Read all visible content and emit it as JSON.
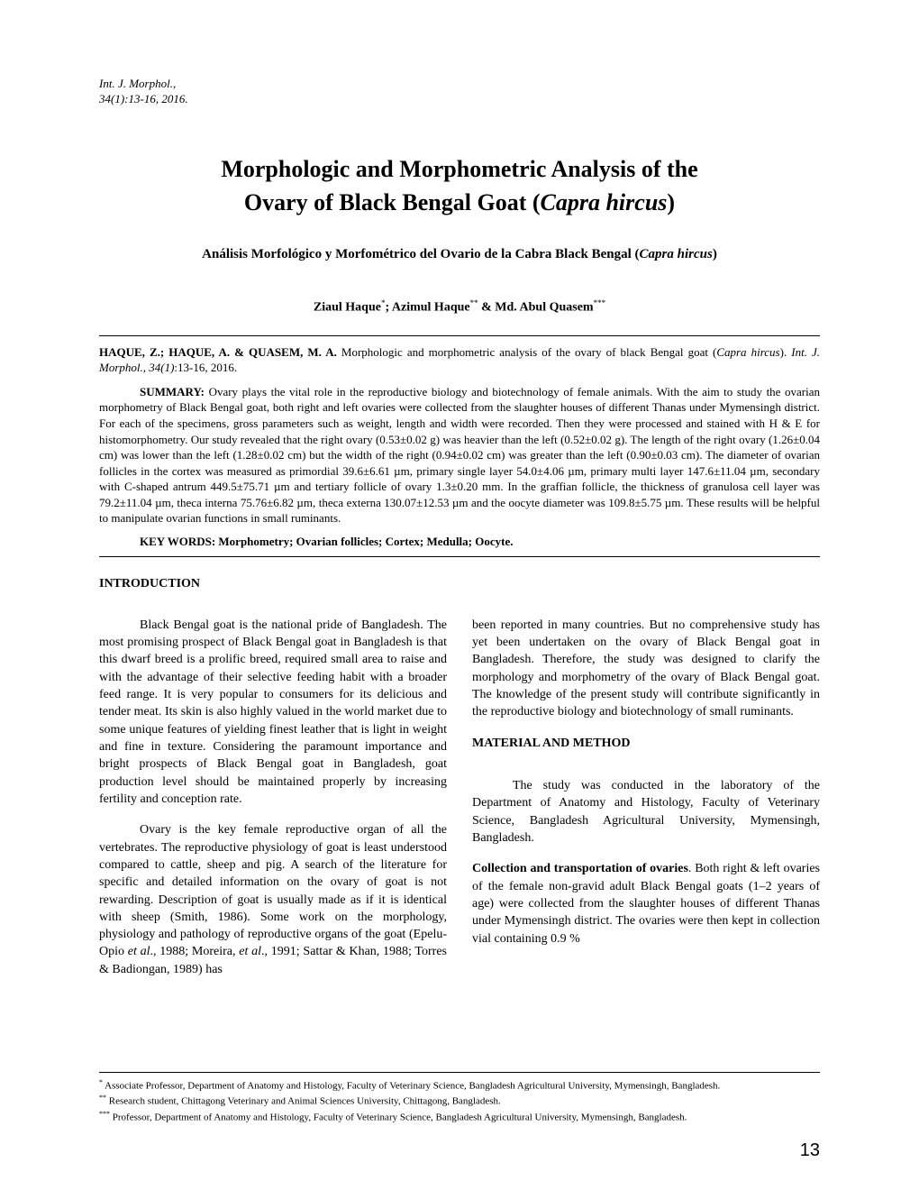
{
  "journal_ref_line1": "Int. J. Morphol.,",
  "journal_ref_line2": "34(1):13-16, 2016.",
  "title_line1": "Morphologic and Morphometric Analysis of the",
  "title_line2_pre": "Ovary of Black Bengal Goat (",
  "title_line2_species": "Capra hircus",
  "title_line2_post": ")",
  "subtitle_pre": "Análisis Morfológico y Morfométrico del Ovario de la Cabra Black Bengal (",
  "subtitle_species": "Capra hircus",
  "subtitle_post": ")",
  "author1": "Ziaul Haque",
  "author1_sup": "*",
  "author_sep1": "; ",
  "author2": "Azimul Haque",
  "author2_sup": "**",
  "author_sep2": " & ",
  "author3": "Md. Abul Quasem",
  "author3_sup": "***",
  "citation_authors": "HAQUE, Z.; HAQUE, A. & QUASEM, M. A.",
  "citation_title_pre": " Morphologic and morphometric analysis of the ovary of black Bengal goat (",
  "citation_species": "Capra hircus",
  "citation_title_post": "). ",
  "citation_journal": "Int. J. Morphol., 34(1)",
  "citation_pages": ":13-16, 2016.",
  "summary_label": "SUMMARY: ",
  "summary_text": "Ovary plays the vital role in the reproductive biology and biotechnology of female animals. With the aim to study the ovarian morphometry of Black Bengal goat, both right and left ovaries were collected from the slaughter houses of different Thanas under Mymensingh district. For each of the specimens, gross parameters such as weight, length and width were recorded. Then they were processed and stained with H & E for histomorphometry. Our study revealed that the right ovary (0.53±0.02 g) was heavier than the left (0.52±0.02 g). The length of the right ovary (1.26±0.04 cm) was lower than the left (1.28±0.02 cm) but the width of the right (0.94±0.02 cm) was greater than the left (0.90±0.03 cm). The diameter of ovarian follicles in the cortex was measured as primordial 39.6±6.61 µm, primary single layer 54.0±4.06 µm, primary multi layer 147.6±11.04 µm, secondary with C-shaped antrum 449.5±75.71 µm and tertiary follicle of ovary 1.3±0.20 mm. In the graffian follicle, the thickness of granulosa cell layer was 79.2±11.04 µm, theca interna 75.76±6.82 µm, theca externa 130.07±12.53 µm and the oocyte diameter was 109.8±5.75 µm. These results will be helpful to manipulate ovarian functions in small ruminants.",
  "keywords_label": "KEY WORDS: ",
  "keywords_text": "Morphometry; Ovarian follicles; Cortex; Medulla; Oocyte.",
  "intro_heading": "INTRODUCTION",
  "intro_p1": "Black Bengal goat is the national pride of Bangladesh. The most promising prospect of Black Bengal goat in Bangladesh is that this dwarf breed is a prolific breed, required small area to raise and with the advantage of their selective feeding habit with a broader feed range. It is very popular to consumers for its delicious and tender meat. Its skin is also highly valued in the world market due to some unique features of yielding finest leather that is light in weight and fine in texture. Considering the paramount importance and bright prospects of Black Bengal goat in Bangladesh, goat production level should be maintained properly by increasing fertility and conception rate.",
  "intro_p2_pre": "Ovary is the key female reproductive organ of all the vertebrates. The reproductive physiology of goat is least understood compared to cattle, sheep and pig. A search of the literature for specific and detailed information on the ovary of goat is not rewarding. Description of goat is usually made as if it is identical with sheep (Smith, 1986). Some work on the morphology, physiology and pathology of reproductive organs of the goat (Epelu-Opio ",
  "intro_p2_etal1": "et al",
  "intro_p2_mid": "., 1988; Moreira, ",
  "intro_p2_etal2": "et al",
  "intro_p2_post": "., 1991; Sattar & Khan, 1988; Torres & Badiongan, 1989) has",
  "col2_p1": "been reported in many countries. But no comprehensive study has yet been undertaken on the ovary of Black Bengal goat in Bangladesh. Therefore, the study was designed to clarify the morphology and morphometry of the ovary of Black Bengal goat. The knowledge of the present study will contribute significantly in the reproductive biology and biotechnology of small ruminants.",
  "methods_heading": "MATERIAL AND METHOD",
  "methods_p1": "The study was conducted in the laboratory of the Department of Anatomy and Histology, Faculty of Veterinary Science, Bangladesh Agricultural University, Mymensingh, Bangladesh.",
  "methods_p2_label": "Collection and transportation of ovaries",
  "methods_p2_text": ". Both right & left ovaries of the female non-gravid adult Black Bengal goats (1–2 years of age) were collected from the slaughter houses of different Thanas under Mymensingh district. The ovaries were then kept in collection vial containing 0.9 %",
  "fn1_sup": "*",
  "fn1_text": "   Associate Professor, Department of Anatomy and Histology, Faculty of Veterinary Science, Bangladesh Agricultural University, Mymensingh, Bangladesh.",
  "fn2_sup": "**",
  "fn2_text": "  Research student, Chittagong Veterinary and Animal Sciences University, Chittagong, Bangladesh.",
  "fn3_sup": "***",
  "fn3_text": " Professor, Department of Anatomy and Histology, Faculty of Veterinary Science, Bangladesh Agricultural University, Mymensingh, Bangladesh.",
  "page_number": "13"
}
